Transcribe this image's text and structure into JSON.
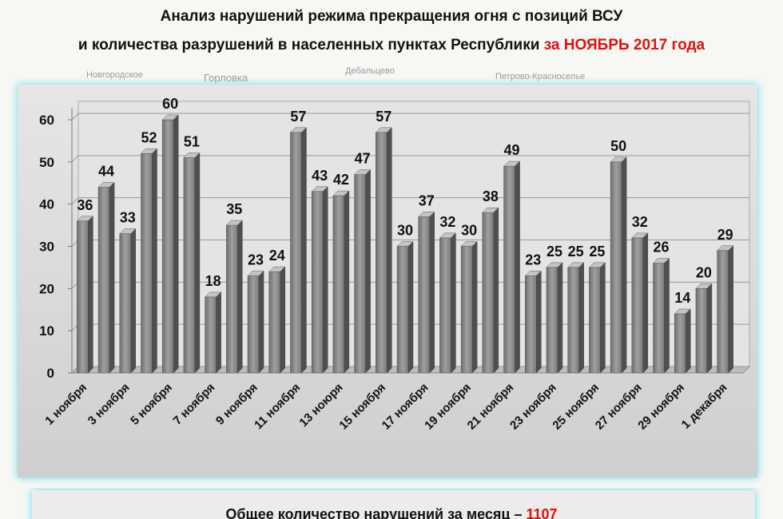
{
  "title_line1": "Анализ нарушений режима прекращения огня с позиций ВСУ",
  "title_line2": "и количества разрушений в населенных пунктах Республики",
  "title_highlight": "за НОЯБРЬ 2017 года",
  "map_labels": [
    "Новгородское",
    "Горловка",
    "Дебальцево",
    "Петрово-Красноселье"
  ],
  "chart_data": {
    "type": "bar",
    "categories": [
      "1 ноября",
      null,
      "3 ноября",
      null,
      "5 ноября",
      null,
      "7 ноября",
      null,
      "9 ноября",
      null,
      "11 ноября",
      null,
      "13 ноюря",
      null,
      "15 ноября",
      null,
      "17 ноября",
      null,
      "19 ноября",
      null,
      "21 ноября",
      null,
      "23 ноября",
      null,
      "25 ноября",
      null,
      "27 ноября",
      null,
      "29 ноября",
      null,
      "1 декабря"
    ],
    "values": [
      36,
      44,
      33,
      52,
      60,
      51,
      18,
      35,
      23,
      24,
      57,
      43,
      42,
      47,
      57,
      30,
      37,
      32,
      30,
      38,
      49,
      23,
      25,
      25,
      25,
      50,
      32,
      26,
      14,
      20,
      29
    ],
    "color": "#8c8c8c",
    "ylim": [
      0,
      60
    ],
    "yticks": [
      0,
      10,
      20,
      30,
      40,
      50,
      60
    ],
    "grid": true
  },
  "footer": {
    "text": "Общее количество нарушений за месяц –",
    "total": "1107"
  }
}
